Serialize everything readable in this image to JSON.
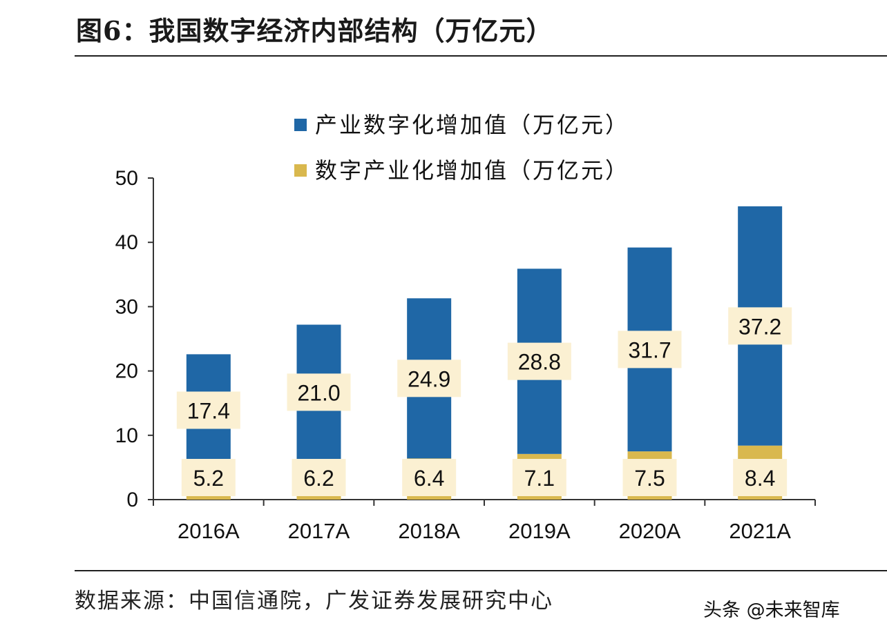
{
  "page": {
    "title": "图6：我国数字经济内部结构（万亿元）",
    "source": "数据来源：中国信通院，广发证券发展研究中心",
    "watermark": "头条 @未来智库"
  },
  "colors": {
    "blue": "#1f67a6",
    "gold": "#d9b84e",
    "label_bg": "#fbf0d2",
    "axis": "#333333"
  },
  "chart_data": {
    "type": "bar",
    "stacked": true,
    "title": "",
    "xlabel": "",
    "ylabel": "",
    "ylim": [
      0,
      50
    ],
    "yticks": [
      0,
      10,
      20,
      30,
      40,
      50
    ],
    "categories": [
      "2016A",
      "2017A",
      "2018A",
      "2019A",
      "2020A",
      "2021A"
    ],
    "legend_position": "top-right",
    "series": [
      {
        "name": "数字产业化增加值（万亿元）",
        "color": "#d9b84e",
        "values": [
          5.2,
          6.2,
          6.4,
          7.1,
          7.5,
          8.4
        ]
      },
      {
        "name": "产业数字化增加值（万亿元）",
        "color": "#1f67a6",
        "values": [
          17.4,
          21.0,
          24.9,
          28.8,
          31.7,
          37.2
        ]
      }
    ],
    "legend_order": [
      1,
      0
    ]
  }
}
